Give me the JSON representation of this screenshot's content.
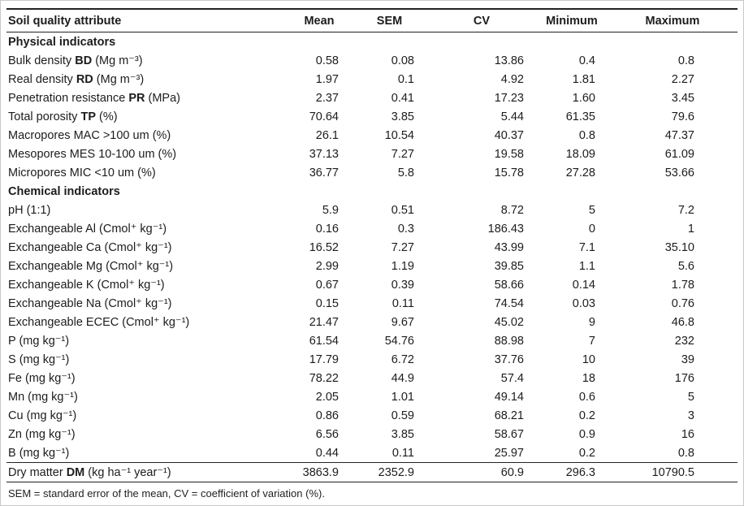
{
  "table": {
    "columns": [
      "Soil quality attribute",
      "Mean",
      "SEM",
      "CV",
      "Minimum",
      "Maximum"
    ],
    "rows": [
      {
        "type": "section",
        "label": "Physical indicators"
      },
      {
        "type": "data",
        "pre": "Bulk density ",
        "abbr": "BD",
        "post": " (Mg m⁻³)",
        "values": [
          "0.58",
          "0.08",
          "13.86",
          "0.4",
          "0.8"
        ]
      },
      {
        "type": "data",
        "pre": "Real density ",
        "abbr": "RD",
        "post": " (Mg m⁻³)",
        "values": [
          "1.97",
          "0.1",
          "4.92",
          "1.81",
          "2.27"
        ]
      },
      {
        "type": "data",
        "pre": "Penetration resistance ",
        "abbr": "PR",
        "post": " (MPa)",
        "values": [
          "2.37",
          "0.41",
          "17.23",
          "1.60",
          "3.45"
        ]
      },
      {
        "type": "data",
        "pre": "Total porosity ",
        "abbr": "TP",
        "post": " (%)",
        "values": [
          "70.64",
          "3.85",
          "5.44",
          "61.35",
          "79.6"
        ]
      },
      {
        "type": "data",
        "pre": "Macropores MAC >100 um (%)",
        "abbr": "",
        "post": "",
        "values": [
          "26.1",
          "10.54",
          "40.37",
          "0.8",
          "47.37"
        ]
      },
      {
        "type": "data",
        "pre": "Mesopores MES 10-100 um (%)",
        "abbr": "",
        "post": "",
        "values": [
          "37.13",
          "7.27",
          "19.58",
          "18.09",
          "61.09"
        ]
      },
      {
        "type": "data",
        "pre": "Micropores MIC <10 um (%)",
        "abbr": "",
        "post": "",
        "values": [
          "36.77",
          "5.8",
          "15.78",
          "27.28",
          "53.66"
        ]
      },
      {
        "type": "section",
        "label": "Chemical indicators"
      },
      {
        "type": "data",
        "pre": "pH (1:1)",
        "abbr": "",
        "post": "",
        "values": [
          "5.9",
          "0.51",
          "8.72",
          "5",
          "7.2"
        ]
      },
      {
        "type": "data",
        "pre": "Exchangeable Al (Cmol⁺ kg⁻¹)",
        "abbr": "",
        "post": "",
        "values": [
          "0.16",
          "0.3",
          "186.43",
          "0",
          "1"
        ]
      },
      {
        "type": "data",
        "pre": "Exchangeable Ca (Cmol⁺ kg⁻¹)",
        "abbr": "",
        "post": "",
        "values": [
          "16.52",
          "7.27",
          "43.99",
          "7.1",
          "35.10"
        ]
      },
      {
        "type": "data",
        "pre": "Exchangeable Mg (Cmol⁺ kg⁻¹)",
        "abbr": "",
        "post": "",
        "values": [
          "2.99",
          "1.19",
          "39.85",
          "1.1",
          "5.6"
        ]
      },
      {
        "type": "data",
        "pre": "Exchangeable K (Cmol⁺ kg⁻¹)",
        "abbr": "",
        "post": "",
        "values": [
          "0.67",
          "0.39",
          "58.66",
          "0.14",
          "1.78"
        ]
      },
      {
        "type": "data",
        "pre": "Exchangeable Na (Cmol⁺ kg⁻¹)",
        "abbr": "",
        "post": "",
        "values": [
          "0.15",
          "0.11",
          "74.54",
          "0.03",
          "0.76"
        ]
      },
      {
        "type": "data",
        "pre": "Exchangeable ECEC (Cmol⁺ kg⁻¹)",
        "abbr": "",
        "post": "",
        "values": [
          "21.47",
          "9.67",
          "45.02",
          "9",
          "46.8"
        ]
      },
      {
        "type": "data",
        "pre": "P (mg kg⁻¹)",
        "abbr": "",
        "post": "",
        "values": [
          "61.54",
          "54.76",
          "88.98",
          "7",
          "232"
        ]
      },
      {
        "type": "data",
        "pre": "S (mg kg⁻¹)",
        "abbr": "",
        "post": "",
        "values": [
          "17.79",
          "6.72",
          "37.76",
          "10",
          "39"
        ]
      },
      {
        "type": "data",
        "pre": "Fe (mg kg⁻¹)",
        "abbr": "",
        "post": "",
        "values": [
          "78.22",
          "44.9",
          "57.4",
          "18",
          "176"
        ]
      },
      {
        "type": "data",
        "pre": "Mn (mg kg⁻¹)",
        "abbr": "",
        "post": "",
        "values": [
          "2.05",
          "1.01",
          "49.14",
          "0.6",
          "5"
        ]
      },
      {
        "type": "data",
        "pre": "Cu (mg kg⁻¹)",
        "abbr": "",
        "post": "",
        "values": [
          "0.86",
          "0.59",
          "68.21",
          "0.2",
          "3"
        ]
      },
      {
        "type": "data",
        "pre": "Zn (mg kg⁻¹)",
        "abbr": "",
        "post": "",
        "values": [
          "6.56",
          "3.85",
          "58.67",
          "0.9",
          "16"
        ]
      },
      {
        "type": "data",
        "pre": "B (mg kg⁻¹)",
        "abbr": "",
        "post": "",
        "values": [
          "0.44",
          "0.11",
          "25.97",
          "0.2",
          "0.8"
        ]
      },
      {
        "type": "data",
        "pre": "Dry matter ",
        "abbr": "DM",
        "post": " (kg ha⁻¹ year⁻¹)",
        "rule_above": true,
        "rule_below": true,
        "values": [
          "3863.9",
          "2352.9",
          "60.9",
          "296.3",
          "10790.5"
        ]
      }
    ],
    "footnote": "SEM = standard error of the mean, CV = coefficient of variation (%)."
  }
}
